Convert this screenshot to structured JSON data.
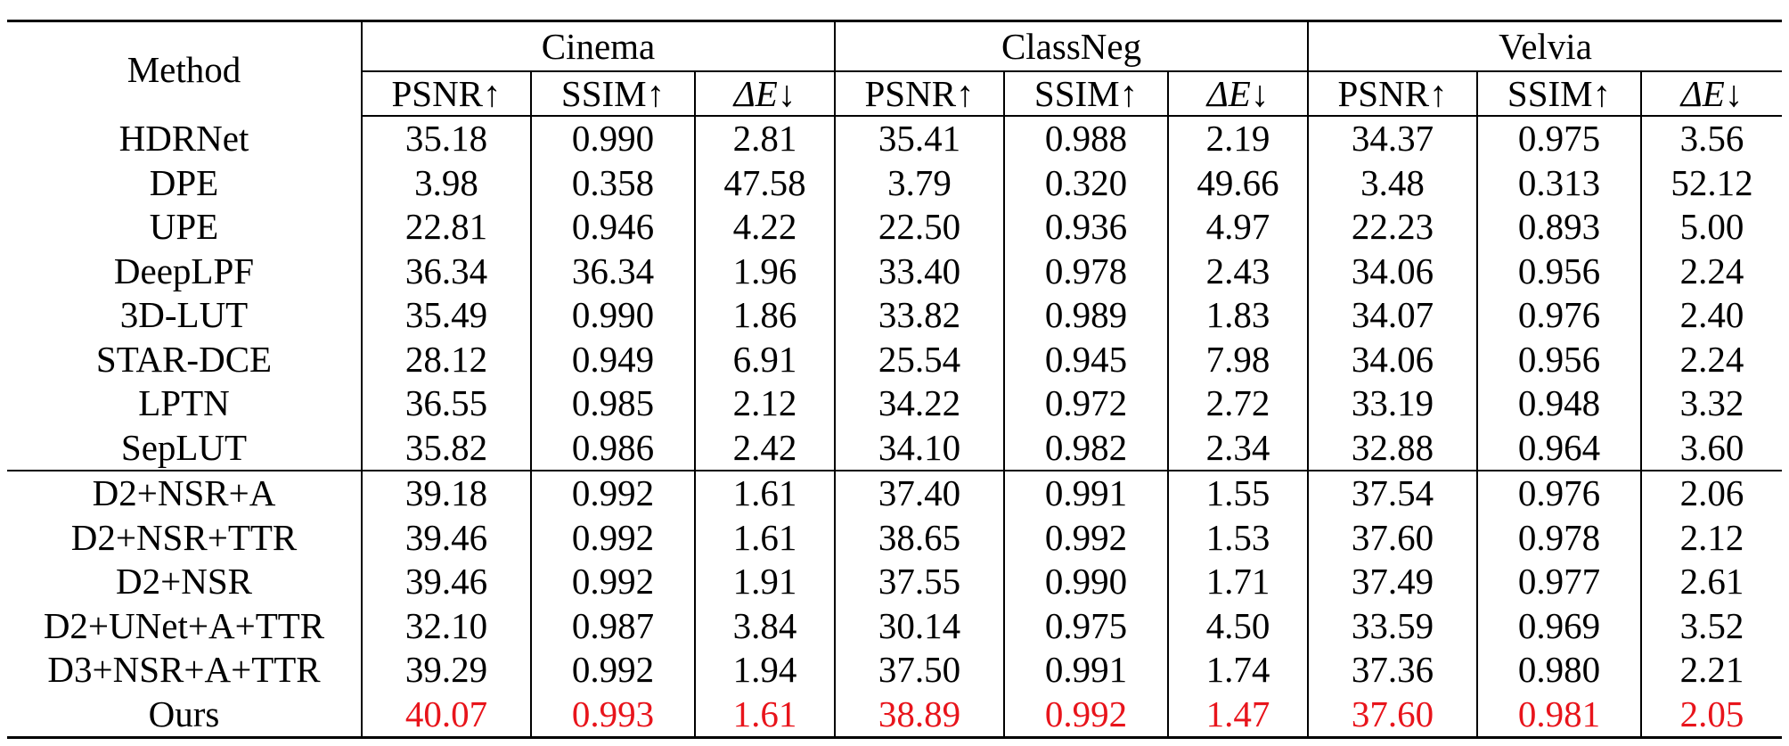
{
  "header": {
    "method": "Method",
    "groups": [
      "Cinema",
      "ClassNeg",
      "Velvia"
    ],
    "metrics": [
      {
        "name": "PSNR",
        "arrow": "↑"
      },
      {
        "name": "SSIM",
        "arrow": "↑"
      },
      {
        "name": "ΔE",
        "arrow": "↓"
      }
    ]
  },
  "rows": [
    {
      "method": "HDRNet",
      "values": [
        "35.18",
        "0.990",
        "2.81",
        "35.41",
        "0.988",
        "2.19",
        "34.37",
        "0.975",
        "3.56"
      ]
    },
    {
      "method": "DPE",
      "values": [
        "3.98",
        "0.358",
        "47.58",
        "3.79",
        "0.320",
        "49.66",
        "3.48",
        "0.313",
        "52.12"
      ]
    },
    {
      "method": "UPE",
      "values": [
        "22.81",
        "0.946",
        "4.22",
        "22.50",
        "0.936",
        "4.97",
        "22.23",
        "0.893",
        "5.00"
      ]
    },
    {
      "method": "DeepLPF",
      "values": [
        "36.34",
        "36.34",
        "1.96",
        "33.40",
        "0.978",
        "2.43",
        "34.06",
        "0.956",
        "2.24"
      ]
    },
    {
      "method": "3D-LUT",
      "values": [
        "35.49",
        "0.990",
        "1.86",
        "33.82",
        "0.989",
        "1.83",
        "34.07",
        "0.976",
        "2.40"
      ]
    },
    {
      "method": "STAR-DCE",
      "values": [
        "28.12",
        "0.949",
        "6.91",
        "25.54",
        "0.945",
        "7.98",
        "34.06",
        "0.956",
        "2.24"
      ]
    },
    {
      "method": "LPTN",
      "values": [
        "36.55",
        "0.985",
        "2.12",
        "34.22",
        "0.972",
        "2.72",
        "33.19",
        "0.948",
        "3.32"
      ]
    },
    {
      "method": "SepLUT",
      "values": [
        "35.82",
        "0.986",
        "2.42",
        "34.10",
        "0.982",
        "2.34",
        "32.88",
        "0.964",
        "3.60"
      ]
    },
    {
      "method": "D2+NSR+A",
      "values": [
        "39.18",
        "0.992",
        "1.61",
        "37.40",
        "0.991",
        "1.55",
        "37.54",
        "0.976",
        "2.06"
      ]
    },
    {
      "method": "D2+NSR+TTR",
      "values": [
        "39.46",
        "0.992",
        "1.61",
        "38.65",
        "0.992",
        "1.53",
        "37.60",
        "0.978",
        "2.12"
      ]
    },
    {
      "method": "D2+NSR",
      "values": [
        "39.46",
        "0.992",
        "1.91",
        "37.55",
        "0.990",
        "1.71",
        "37.49",
        "0.977",
        "2.61"
      ]
    },
    {
      "method": "D2+UNet+A+TTR",
      "values": [
        "32.10",
        "0.987",
        "3.84",
        "30.14",
        "0.975",
        "4.50",
        "33.59",
        "0.969",
        "3.52"
      ]
    },
    {
      "method": "D3+NSR+A+TTR",
      "values": [
        "39.29",
        "0.992",
        "1.94",
        "37.50",
        "0.991",
        "1.74",
        "37.36",
        "0.980",
        "2.21"
      ]
    },
    {
      "method": "Ours",
      "values": [
        "40.07",
        "0.993",
        "1.61",
        "38.89",
        "0.992",
        "1.47",
        "37.60",
        "0.981",
        "2.05"
      ],
      "highlight": true
    }
  ],
  "section_break_after_row": 7,
  "highlight_color": "#e8141b"
}
